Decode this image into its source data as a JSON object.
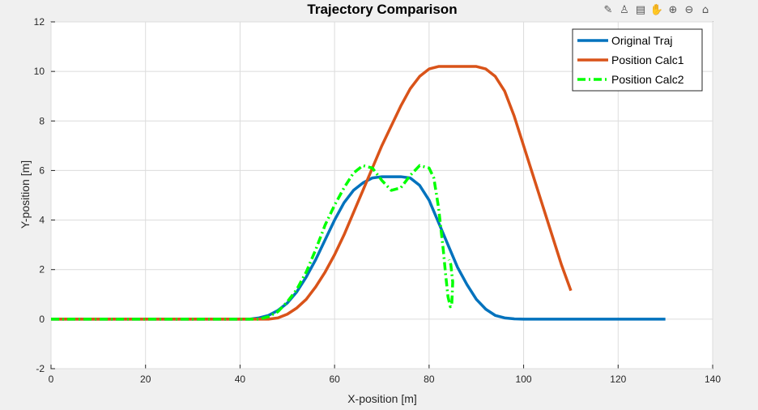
{
  "toolbar": {
    "icons": [
      {
        "name": "brush-icon",
        "glyph": "✎"
      },
      {
        "name": "data-tips-icon",
        "glyph": "♙"
      },
      {
        "name": "export-icon",
        "glyph": "▤"
      },
      {
        "name": "pan-icon",
        "glyph": "✋"
      },
      {
        "name": "zoom-in-icon",
        "glyph": "⊕"
      },
      {
        "name": "zoom-out-icon",
        "glyph": "⊖"
      },
      {
        "name": "home-icon",
        "glyph": "⌂"
      }
    ]
  },
  "chart_data": {
    "type": "line",
    "title": "Trajectory Comparison",
    "xlabel": "X-position [m]",
    "ylabel": "Y-position [m]",
    "xlim": [
      0,
      140
    ],
    "ylim": [
      -2,
      12
    ],
    "xticks": [
      0,
      20,
      40,
      60,
      80,
      100,
      120,
      140
    ],
    "yticks": [
      -2,
      0,
      2,
      4,
      6,
      8,
      10,
      12
    ],
    "grid": true,
    "legend_position": "top-right",
    "series": [
      {
        "name": "Original Traj",
        "color": "#0072bd",
        "dash": "solid",
        "x": [
          0,
          42,
          44,
          46,
          48,
          50,
          52,
          54,
          56,
          58,
          60,
          62,
          64,
          66,
          68,
          70,
          72,
          74,
          76,
          78,
          80,
          82,
          84,
          86,
          88,
          90,
          92,
          94,
          96,
          98,
          100,
          130
        ],
        "y": [
          0,
          0,
          0.05,
          0.15,
          0.35,
          0.65,
          1.1,
          1.7,
          2.4,
          3.2,
          4.0,
          4.7,
          5.2,
          5.5,
          5.7,
          5.75,
          5.75,
          5.75,
          5.7,
          5.4,
          4.8,
          3.9,
          3.0,
          2.1,
          1.4,
          0.8,
          0.4,
          0.15,
          0.05,
          0.01,
          0,
          0
        ]
      },
      {
        "name": "Position Calc1",
        "color": "#d95319",
        "dash": "solid",
        "x": [
          0,
          46,
          48,
          50,
          52,
          54,
          56,
          58,
          60,
          62,
          64,
          66,
          68,
          70,
          72,
          74,
          76,
          78,
          80,
          82,
          84,
          86,
          88,
          90,
          92,
          94,
          96,
          98,
          100,
          102,
          104,
          106,
          108,
          110
        ],
        "y": [
          0,
          0,
          0.05,
          0.2,
          0.45,
          0.8,
          1.3,
          1.9,
          2.6,
          3.4,
          4.3,
          5.2,
          6.1,
          7.0,
          7.8,
          8.6,
          9.3,
          9.8,
          10.1,
          10.2,
          10.2,
          10.2,
          10.2,
          10.2,
          10.1,
          9.8,
          9.2,
          8.2,
          7.0,
          5.8,
          4.6,
          3.4,
          2.2,
          1.15
        ]
      },
      {
        "name": "Position Calc2",
        "color": "#00ff00",
        "dash": "dashdot",
        "x": [
          0,
          44,
          46,
          48,
          50,
          52,
          54,
          56,
          58,
          60,
          62,
          64,
          66,
          68,
          70,
          72,
          74,
          76,
          78,
          80,
          81,
          82,
          83,
          83.5,
          84,
          84.5,
          84.8,
          85,
          84.6,
          84.2
        ],
        "y": [
          0,
          0,
          0.1,
          0.3,
          0.7,
          1.2,
          1.9,
          2.8,
          3.8,
          4.6,
          5.3,
          5.9,
          6.2,
          6.1,
          5.6,
          5.2,
          5.3,
          5.8,
          6.2,
          6.1,
          5.7,
          4.5,
          2.8,
          1.8,
          0.9,
          0.5,
          0.6,
          1.5,
          2.2,
          2.4
        ]
      }
    ]
  }
}
